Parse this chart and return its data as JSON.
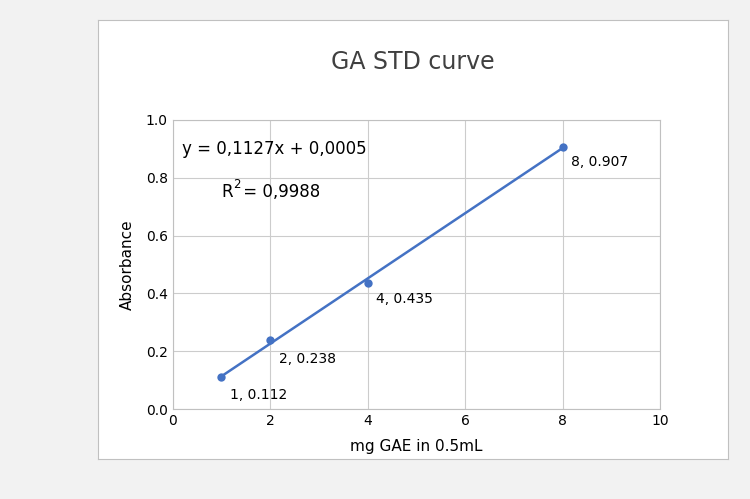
{
  "title": "GA STD curve",
  "xlabel": "mg GAE in 0.5mL",
  "ylabel": "Absorbance",
  "x_data": [
    1,
    2,
    4,
    8
  ],
  "y_data": [
    0.112,
    0.238,
    0.435,
    0.907
  ],
  "point_labels": [
    "1, 0.112",
    "2, 0.238",
    "4, 0.435",
    "8, 0.907"
  ],
  "equation_line1": "y = 0,1127x + 0,0005",
  "r2_prefix": "R",
  "r2_suffix": " = 0,9988",
  "slope": 0.1127,
  "intercept": 0.0005,
  "xlim": [
    0,
    10
  ],
  "ylim": [
    0,
    1
  ],
  "xticks": [
    0,
    2,
    4,
    6,
    8,
    10
  ],
  "ytick_labels": [
    "0",
    "0.2",
    "0.4",
    "0.6",
    "0.8",
    "1"
  ],
  "yticks": [
    0,
    0.2,
    0.4,
    0.6,
    0.8,
    1.0
  ],
  "line_color": "#4472C4",
  "marker_color": "#4472C4",
  "marker_size": 6,
  "title_fontsize": 17,
  "label_fontsize": 11,
  "tick_fontsize": 10,
  "annotation_fontsize": 10,
  "eq_fontsize": 12,
  "outer_bg": "#f2f2f2",
  "inner_bg": "#ffffff",
  "plot_bg_color": "#ffffff",
  "grid_color": "#cccccc",
  "border_color": "#c0c0c0",
  "line_x_start": 1.0,
  "line_x_end": 8.0
}
